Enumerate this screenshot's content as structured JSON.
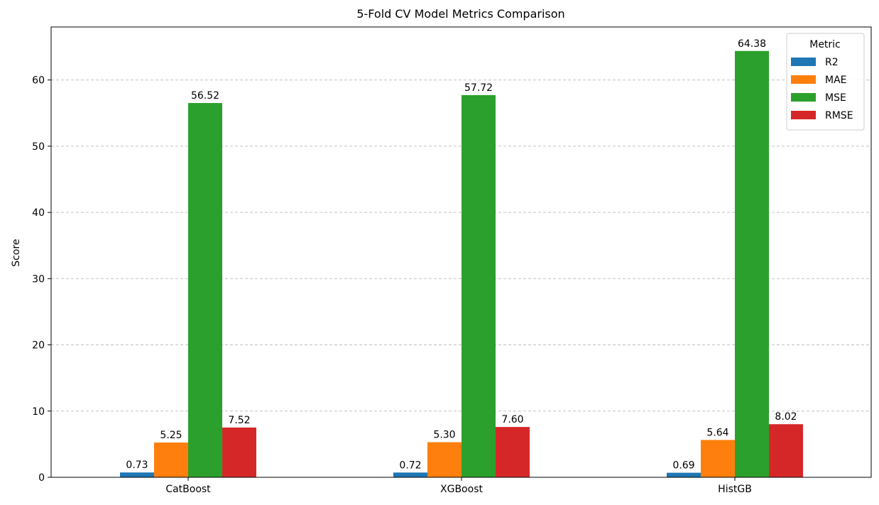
{
  "chart_data": {
    "type": "bar",
    "title": "5-Fold CV Model Metrics Comparison",
    "xlabel": "",
    "ylabel": "Score",
    "categories": [
      "CatBoost",
      "XGBoost",
      "HistGB"
    ],
    "series": [
      {
        "name": "R2",
        "color": "#1f77b4",
        "values": [
          0.73,
          0.72,
          0.69
        ],
        "labels": [
          "0.73",
          "0.72",
          "0.69"
        ]
      },
      {
        "name": "MAE",
        "color": "#ff7f0e",
        "values": [
          5.25,
          5.3,
          5.64
        ],
        "labels": [
          "5.25",
          "5.30",
          "5.64"
        ]
      },
      {
        "name": "MSE",
        "color": "#2ca02c",
        "values": [
          56.52,
          57.72,
          64.38
        ],
        "labels": [
          "56.52",
          "57.72",
          "64.38"
        ]
      },
      {
        "name": "RMSE",
        "color": "#d62728",
        "values": [
          7.52,
          7.6,
          8.02
        ],
        "labels": [
          "7.52",
          "7.60",
          "8.02"
        ]
      }
    ],
    "ylim": [
      0,
      68
    ],
    "yticks": [
      0,
      10,
      20,
      30,
      40,
      50,
      60
    ],
    "grid": "y-dashed",
    "legend": {
      "title": "Metric",
      "placement": "top-right"
    }
  }
}
